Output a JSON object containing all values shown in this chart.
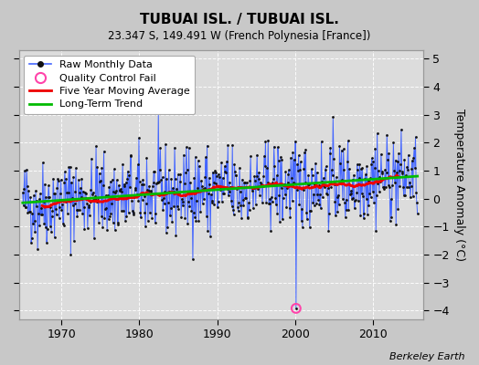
{
  "title": "TUBUAI ISL. / TUBUAI ISL.",
  "subtitle": "23.347 S, 149.491 W (French Polynesia [France])",
  "ylabel": "Temperature Anomaly (°C)",
  "attribution": "Berkeley Earth",
  "xlim": [
    1964.5,
    2016.5
  ],
  "ylim": [
    -4.3,
    5.3
  ],
  "yticks": [
    -4,
    -3,
    -2,
    -1,
    0,
    1,
    2,
    3,
    4,
    5
  ],
  "xticks": [
    1970,
    1980,
    1990,
    2000,
    2010
  ],
  "outer_bg_color": "#c8c8c8",
  "plot_bg_color": "#dcdcdc",
  "grid_color": "#ffffff",
  "raw_line_color": "#4466ff",
  "raw_dot_color": "#111111",
  "moving_avg_color": "#ee0000",
  "trend_color": "#00bb00",
  "qc_fail_color": "#ff44aa",
  "seed": 42
}
